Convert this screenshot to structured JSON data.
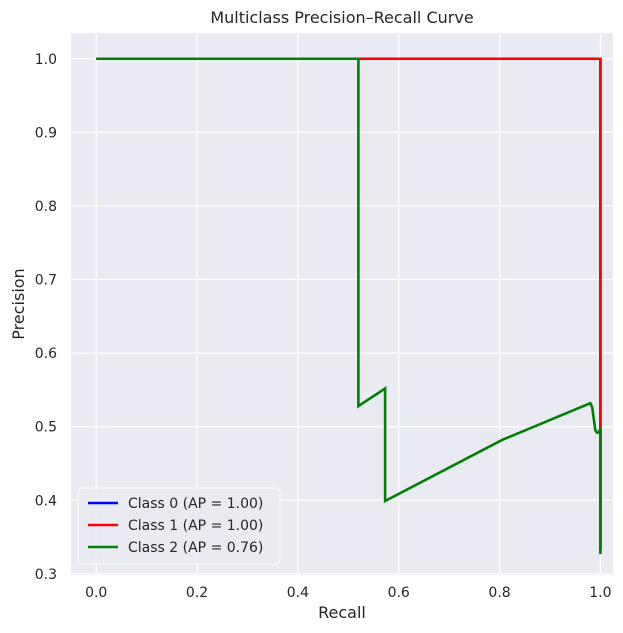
{
  "chart_data": {
    "type": "line",
    "title": "Multiclass Precision–Recall Curve",
    "xlabel": "Recall",
    "ylabel": "Precision",
    "xlim": [
      -0.05,
      1.025
    ],
    "ylim": [
      0.2985,
      1.035
    ],
    "xticks": [
      0.0,
      0.2,
      0.4,
      0.6,
      0.8,
      1.0
    ],
    "xtick_labels": [
      "0.0",
      "0.2",
      "0.4",
      "0.6",
      "0.8",
      "1.0"
    ],
    "yticks": [
      0.3,
      0.4,
      0.5,
      0.6,
      0.7,
      0.8,
      0.9,
      1.0
    ],
    "ytick_labels": [
      "0.3",
      "0.4",
      "0.5",
      "0.6",
      "0.7",
      "0.8",
      "0.9",
      "1.0"
    ],
    "grid": true,
    "legend_position": "lower-left",
    "series": [
      {
        "name": "Class 0 (AP = 1.00)",
        "color": "#0000ff",
        "x": [
          0.0,
          1.0,
          1.0
        ],
        "y": [
          1.0,
          1.0,
          0.333
        ]
      },
      {
        "name": "Class 1 (AP = 1.00)",
        "color": "#ff0000",
        "x": [
          0.0,
          1.0,
          1.0
        ],
        "y": [
          1.0,
          1.0,
          0.333
        ]
      },
      {
        "name": "Class 2 (AP = 0.76)",
        "color": "#008000",
        "x": [
          0.0,
          0.52,
          0.52,
          0.573,
          0.573,
          0.805,
          0.98,
          0.984,
          0.984,
          0.99,
          0.993,
          0.997,
          1.0,
          1.0,
          1.0
        ],
        "y": [
          1.0,
          1.0,
          0.528,
          0.552,
          0.399,
          0.482,
          0.532,
          0.526,
          0.525,
          0.495,
          0.492,
          0.492,
          0.498,
          0.345,
          0.327
        ]
      }
    ]
  }
}
